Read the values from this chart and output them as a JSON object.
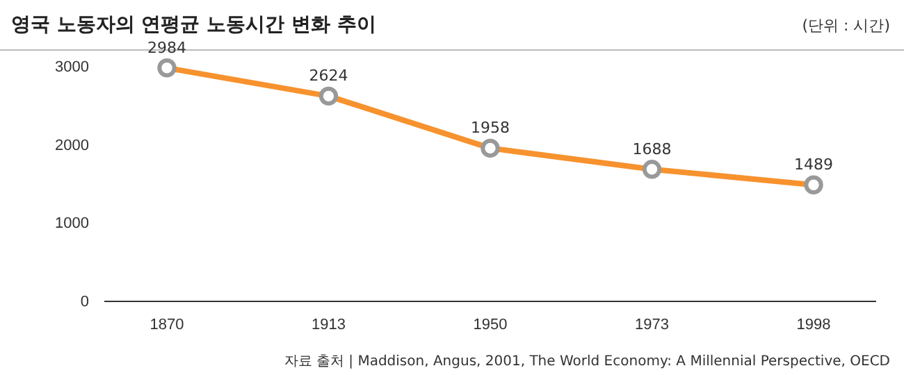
{
  "chart_data": {
    "type": "line",
    "title": "영국 노동자의 연평균 노동시간 변화 추이",
    "annotations": [
      "(단위 : 시간)",
      "자료 출처 | Maddison, Angus, 2001, The World Economy: A Millennial Perspective, OECD"
    ],
    "categories": [
      "1870",
      "1913",
      "1950",
      "1973",
      "1998"
    ],
    "series": [
      {
        "color": "#f7922e",
        "values": [
          2984,
          2624,
          1958,
          1688,
          1489
        ]
      }
    ],
    "ylim": [
      0,
      3000
    ],
    "yticks": [
      0,
      1000,
      2000,
      3000
    ],
    "marker": "circle",
    "line_style": "solid",
    "data_labels": true
  }
}
